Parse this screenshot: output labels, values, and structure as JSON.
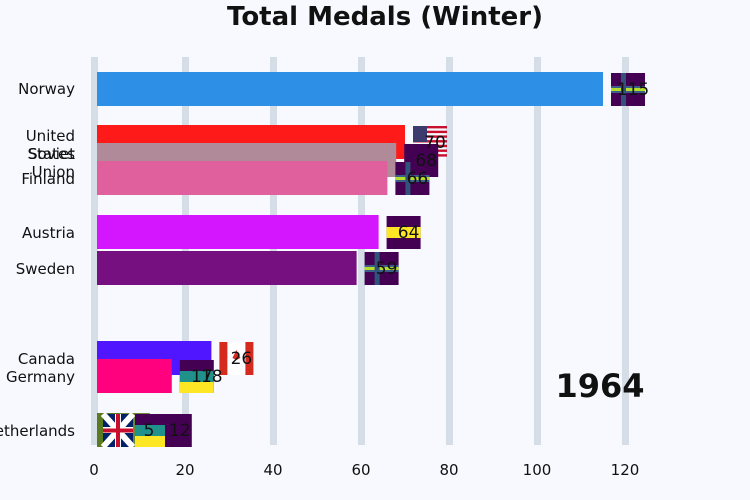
{
  "chart_data": {
    "type": "bar",
    "orientation": "horizontal",
    "title": "Total Medals (Winter)",
    "year": "1964",
    "xlim": [
      0,
      130
    ],
    "xticks": [
      0,
      20,
      40,
      60,
      80,
      100,
      120
    ],
    "grid": true,
    "bars": [
      {
        "category": "Norway",
        "value": 115,
        "color": "#2e8fe6",
        "flag": "norway-flag"
      },
      {
        "category": "United States",
        "value": 70,
        "color": "#ff1a1a",
        "flag": "usa-flag"
      },
      {
        "category": "Soviet Union",
        "value": 68,
        "color": "#b08a99",
        "flag": "soviet-union-flag"
      },
      {
        "category": "Finland",
        "value": 66,
        "color": "#e0609e",
        "flag": "finland-flag"
      },
      {
        "category": "Austria",
        "value": 64,
        "color": "#d416ff",
        "flag": "austria-flag"
      },
      {
        "category": "Sweden",
        "value": 59,
        "color": "#760f80",
        "flag": "sweden-flag"
      },
      {
        "category": "Canada",
        "value": 26,
        "color": "#5016ff",
        "flag": "canada-flag"
      },
      {
        "category": "Germany",
        "value": 17,
        "color": "#ff007f",
        "flag": "germany-flag"
      },
      {
        "category": "Netherlands",
        "value": 12,
        "color": "#6e8733",
        "flag": "netherlands-flag"
      },
      {
        "category": "",
        "value": 5,
        "color": "#5a7a20",
        "flag": "great-britain-flag"
      }
    ],
    "extra_labels": [
      "18"
    ]
  }
}
